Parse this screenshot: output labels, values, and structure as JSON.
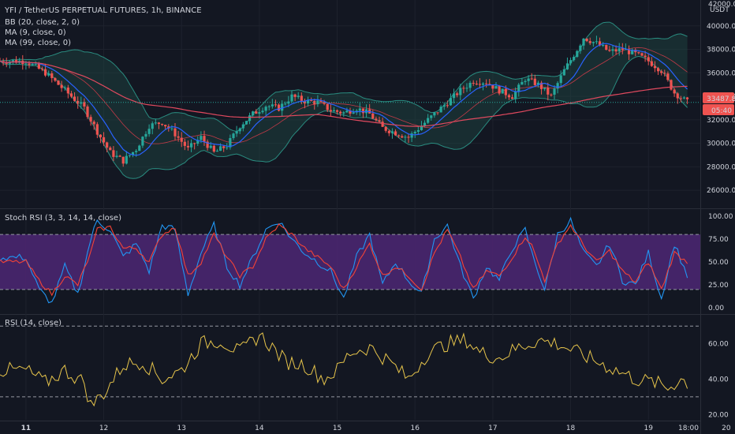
{
  "header": {
    "symbol_title": "YFI / TetherUS PERPETUAL FUTURES, 1h, BINANCE",
    "bb_label": "BB (20, close, 2, 0)",
    "ma9_label": "MA (9, close, 0)",
    "ma99_label": "MA (99, close, 0)",
    "stoch_label": "Stoch RSI (3, 3, 14, 14, close)",
    "rsi_label": "RSI (14, close)"
  },
  "price_axis": {
    "currency": "USDT",
    "top_tick": "42000.0",
    "last_price": "33487.8",
    "countdown": "05:40"
  },
  "time_axis": {
    "labels": [
      "11",
      "12",
      "13",
      "14",
      "15",
      "16",
      "17",
      "18",
      "19",
      "20",
      "18:00"
    ]
  },
  "colors": {
    "up": "#26a69a",
    "down": "#ef5350",
    "bb": "#2a8c80",
    "bb_fill": "#1e4a44",
    "ma9": "#2962ff",
    "ma99": "#e0495e",
    "stoch_k": "#2196f3",
    "stoch_d": "#f44336",
    "stoch_band": "#4a2670",
    "rsi": "#e6c44b"
  },
  "chart_data": [
    {
      "type": "candlestick",
      "title": "YFI / TetherUS PERPETUAL FUTURES, 1h, BINANCE",
      "y_ticks": [
        26000,
        28000,
        30000,
        32000,
        34000,
        36000,
        38000,
        40000
      ],
      "ylim": [
        24600,
        42200
      ],
      "x_range_hours": [
        -8,
        204
      ],
      "close_path": [
        [
          0,
          37000
        ],
        [
          6,
          36000
        ],
        [
          12,
          34500
        ],
        [
          18,
          33000
        ],
        [
          22,
          31000
        ],
        [
          26,
          29200
        ],
        [
          30,
          28500
        ],
        [
          34,
          29500
        ],
        [
          38,
          31500
        ],
        [
          42,
          31800
        ],
        [
          46,
          30800
        ],
        [
          50,
          29500
        ],
        [
          54,
          30500
        ],
        [
          58,
          29200
        ],
        [
          62,
          29800
        ],
        [
          66,
          31500
        ],
        [
          70,
          32500
        ],
        [
          74,
          33200
        ],
        [
          78,
          33000
        ],
        [
          82,
          34000
        ],
        [
          86,
          33600
        ],
        [
          90,
          33500
        ],
        [
          94,
          32800
        ],
        [
          98,
          32600
        ],
        [
          102,
          33000
        ],
        [
          106,
          32500
        ],
        [
          110,
          31300
        ],
        [
          114,
          30900
        ],
        [
          118,
          30500
        ],
        [
          122,
          31500
        ],
        [
          126,
          32500
        ],
        [
          130,
          33500
        ],
        [
          134,
          34500
        ],
        [
          138,
          35300
        ],
        [
          142,
          35200
        ],
        [
          146,
          34500
        ],
        [
          150,
          34000
        ],
        [
          154,
          35500
        ],
        [
          158,
          35000
        ],
        [
          162,
          34000
        ],
        [
          166,
          36200
        ],
        [
          170,
          38000
        ],
        [
          172,
          39000
        ],
        [
          176,
          38500
        ],
        [
          180,
          37800
        ],
        [
          184,
          38000
        ],
        [
          188,
          37600
        ],
        [
          192,
          37000
        ],
        [
          196,
          36200
        ],
        [
          200,
          34300
        ],
        [
          204,
          33500
        ]
      ],
      "series": [
        {
          "name": "BB (20, close, 2, 0)"
        },
        {
          "name": "MA (9, close, 0)"
        },
        {
          "name": "MA (99, close, 0)"
        }
      ],
      "last_value": 33487.8
    },
    {
      "type": "line",
      "title": "Stoch RSI (3, 3, 14, 14, close)",
      "y_ticks": [
        0,
        25,
        50,
        75,
        100
      ],
      "ylim": [
        -5,
        105
      ],
      "bands": [
        20,
        80
      ],
      "x_range_hours": [
        -8,
        204
      ],
      "k_values": [
        [
          0,
          55
        ],
        [
          4,
          20
        ],
        [
          8,
          5
        ],
        [
          12,
          45
        ],
        [
          16,
          15
        ],
        [
          20,
          75
        ],
        [
          22,
          95
        ],
        [
          26,
          85
        ],
        [
          30,
          55
        ],
        [
          34,
          70
        ],
        [
          38,
          40
        ],
        [
          42,
          90
        ],
        [
          46,
          85
        ],
        [
          50,
          15
        ],
        [
          54,
          60
        ],
        [
          58,
          90
        ],
        [
          62,
          45
        ],
        [
          66,
          25
        ],
        [
          70,
          55
        ],
        [
          74,
          85
        ],
        [
          78,
          95
        ],
        [
          82,
          75
        ],
        [
          86,
          60
        ],
        [
          90,
          50
        ],
        [
          94,
          40
        ],
        [
          98,
          10
        ],
        [
          102,
          55
        ],
        [
          106,
          80
        ],
        [
          110,
          25
        ],
        [
          114,
          50
        ],
        [
          118,
          30
        ],
        [
          122,
          15
        ],
        [
          126,
          75
        ],
        [
          130,
          90
        ],
        [
          134,
          45
        ],
        [
          138,
          10
        ],
        [
          142,
          45
        ],
        [
          146,
          30
        ],
        [
          150,
          65
        ],
        [
          154,
          85
        ],
        [
          156,
          60
        ],
        [
          160,
          20
        ],
        [
          164,
          80
        ],
        [
          168,
          95
        ],
        [
          172,
          60
        ],
        [
          176,
          45
        ],
        [
          180,
          70
        ],
        [
          184,
          30
        ],
        [
          188,
          25
        ],
        [
          192,
          60
        ],
        [
          196,
          10
        ],
        [
          200,
          70
        ],
        [
          204,
          35
        ]
      ],
      "d_values": [
        [
          0,
          50
        ],
        [
          4,
          30
        ],
        [
          8,
          15
        ],
        [
          12,
          35
        ],
        [
          16,
          25
        ],
        [
          20,
          60
        ],
        [
          22,
          85
        ],
        [
          26,
          88
        ],
        [
          30,
          65
        ],
        [
          34,
          65
        ],
        [
          38,
          50
        ],
        [
          42,
          80
        ],
        [
          46,
          88
        ],
        [
          50,
          35
        ],
        [
          54,
          50
        ],
        [
          58,
          80
        ],
        [
          62,
          55
        ],
        [
          66,
          35
        ],
        [
          70,
          45
        ],
        [
          74,
          75
        ],
        [
          78,
          90
        ],
        [
          82,
          80
        ],
        [
          86,
          65
        ],
        [
          90,
          55
        ],
        [
          94,
          45
        ],
        [
          98,
          20
        ],
        [
          102,
          45
        ],
        [
          106,
          70
        ],
        [
          110,
          35
        ],
        [
          114,
          45
        ],
        [
          118,
          35
        ],
        [
          122,
          20
        ],
        [
          126,
          60
        ],
        [
          130,
          85
        ],
        [
          134,
          55
        ],
        [
          138,
          20
        ],
        [
          142,
          40
        ],
        [
          146,
          35
        ],
        [
          150,
          55
        ],
        [
          154,
          78
        ],
        [
          156,
          68
        ],
        [
          160,
          30
        ],
        [
          164,
          70
        ],
        [
          168,
          90
        ],
        [
          172,
          68
        ],
        [
          176,
          50
        ],
        [
          180,
          62
        ],
        [
          184,
          40
        ],
        [
          188,
          28
        ],
        [
          192,
          50
        ],
        [
          196,
          20
        ],
        [
          200,
          60
        ],
        [
          204,
          50
        ]
      ]
    },
    {
      "type": "line",
      "title": "RSI (14, close)",
      "y_ticks": [
        20,
        40,
        60
      ],
      "ylim": [
        17,
        75
      ],
      "bands": [
        30,
        70
      ],
      "x_range_hours": [
        -8,
        204
      ],
      "values": [
        [
          0,
          45
        ],
        [
          6,
          38
        ],
        [
          12,
          45
        ],
        [
          18,
          38
        ],
        [
          20,
          25
        ],
        [
          24,
          32
        ],
        [
          30,
          48
        ],
        [
          36,
          50
        ],
        [
          42,
          40
        ],
        [
          48,
          45
        ],
        [
          54,
          60
        ],
        [
          60,
          62
        ],
        [
          66,
          55
        ],
        [
          72,
          65
        ],
        [
          76,
          58
        ],
        [
          80,
          50
        ],
        [
          86,
          48
        ],
        [
          92,
          40
        ],
        [
          96,
          45
        ],
        [
          100,
          55
        ],
        [
          106,
          58
        ],
        [
          112,
          50
        ],
        [
          118,
          40
        ],
        [
          124,
          55
        ],
        [
          130,
          60
        ],
        [
          136,
          62
        ],
        [
          140,
          55
        ],
        [
          146,
          52
        ],
        [
          152,
          58
        ],
        [
          158,
          62
        ],
        [
          164,
          60
        ],
        [
          170,
          55
        ],
        [
          176,
          50
        ],
        [
          182,
          45
        ],
        [
          188,
          40
        ],
        [
          194,
          38
        ],
        [
          198,
          35
        ],
        [
          202,
          40
        ],
        [
          204,
          38
        ]
      ]
    }
  ]
}
